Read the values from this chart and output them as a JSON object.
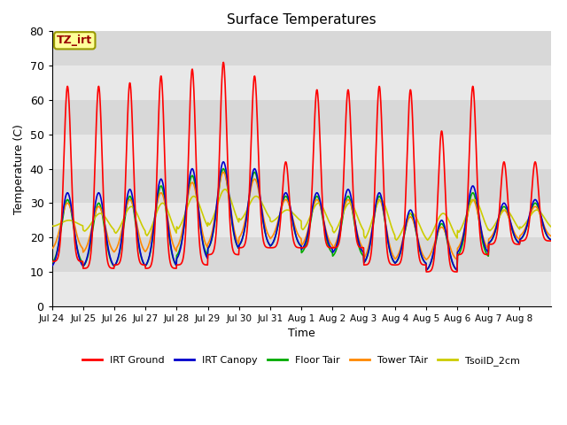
{
  "title": "Surface Temperatures",
  "ylabel": "Temperature (C)",
  "xlabel": "Time",
  "annotation_text": "TZ_irt",
  "annotation_box_color": "#FFFF99",
  "annotation_border_color": "#999900",
  "annotation_text_color": "#990000",
  "ylim": [
    0,
    80
  ],
  "yticks": [
    0,
    10,
    20,
    30,
    40,
    50,
    60,
    70,
    80
  ],
  "bg_color_light": "#E8E8E8",
  "bg_color_dark": "#D8D8D8",
  "series": [
    {
      "label": "IRT Ground",
      "color": "#FF0000",
      "lw": 1.2
    },
    {
      "label": "IRT Canopy",
      "color": "#0000CC",
      "lw": 1.2
    },
    {
      "label": "Floor Tair",
      "color": "#00AA00",
      "lw": 1.2
    },
    {
      "label": "Tower TAir",
      "color": "#FF8800",
      "lw": 1.2
    },
    {
      "label": "TsoilD_2cm",
      "color": "#CCCC00",
      "lw": 1.2
    }
  ],
  "x_tick_labels": [
    "Jul 24",
    "Jul 25",
    "Jul 26",
    "Jul 27",
    "Jul 28",
    "Jul 29",
    "Jul 30",
    "Jul 31",
    "Aug 1",
    "Aug 2",
    "Aug 3",
    "Aug 4",
    "Aug 5",
    "Aug 6",
    "Aug 7",
    "Aug 8"
  ],
  "n_days": 16,
  "irt_ground_peaks": [
    64,
    64,
    65,
    67,
    69,
    71,
    67,
    42,
    63,
    63,
    64,
    63,
    51,
    64,
    42,
    42
  ],
  "irt_ground_mins": [
    13,
    11,
    12,
    11,
    12,
    15,
    17,
    17,
    17,
    17,
    12,
    12,
    10,
    15,
    18,
    19
  ],
  "canopy_peaks": [
    33,
    33,
    34,
    37,
    40,
    42,
    40,
    33,
    33,
    34,
    33,
    28,
    25,
    35,
    30,
    31
  ],
  "canopy_mins": [
    11,
    11,
    11,
    11,
    13,
    16,
    17,
    17,
    16,
    15,
    12,
    12,
    10,
    15,
    18,
    19
  ],
  "floor_peaks": [
    31,
    30,
    32,
    35,
    38,
    40,
    39,
    32,
    32,
    32,
    32,
    27,
    24,
    33,
    29,
    30
  ],
  "floor_mins": [
    12,
    11,
    11,
    11,
    14,
    16,
    17,
    17,
    15,
    14,
    12,
    12,
    10,
    14,
    18,
    19
  ],
  "tower_peaks": [
    30,
    29,
    31,
    33,
    36,
    39,
    37,
    31,
    31,
    31,
    31,
    26,
    23,
    31,
    28,
    29
  ],
  "tower_mins": [
    16,
    15,
    15,
    15,
    16,
    17,
    19,
    19,
    17,
    16,
    13,
    13,
    13,
    16,
    19,
    20
  ],
  "soil_peaks": [
    25,
    27,
    29,
    30,
    32,
    34,
    32,
    28,
    30,
    30,
    31,
    27,
    27,
    31,
    28,
    28
  ],
  "soil_mins": [
    23,
    21,
    20,
    19,
    21,
    22,
    24,
    24,
    21,
    20,
    18,
    18,
    18,
    20,
    21,
    22
  ]
}
